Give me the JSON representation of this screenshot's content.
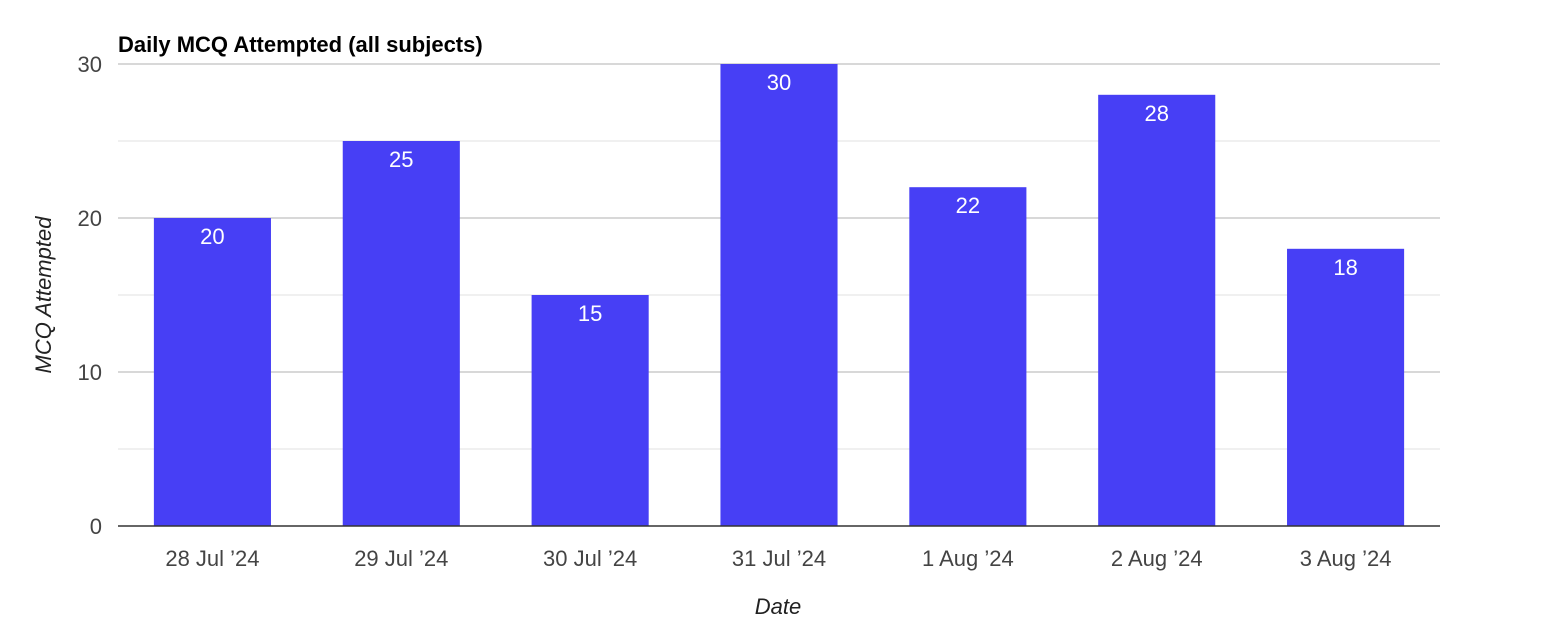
{
  "chart_data": {
    "type": "bar",
    "title": "Daily MCQ Attempted (all subjects)",
    "xlabel": "Date",
    "ylabel": "MCQ Attempted",
    "categories": [
      "28 Jul ’24",
      "29 Jul ’24",
      "30 Jul ’24",
      "31 Jul ’24",
      "1 Aug ’24",
      "2 Aug ’24",
      "3 Aug ’24"
    ],
    "values": [
      20,
      25,
      15,
      30,
      22,
      28,
      18
    ],
    "ylim": [
      0,
      30
    ],
    "yticks": [
      0,
      10,
      20,
      30
    ],
    "minor_gridlines": [
      5,
      15,
      25
    ],
    "grid": true,
    "legend": "none",
    "data_labels": "inside-top",
    "colors": {
      "bar": "#473ff5",
      "data_label": "#ffffff"
    }
  }
}
